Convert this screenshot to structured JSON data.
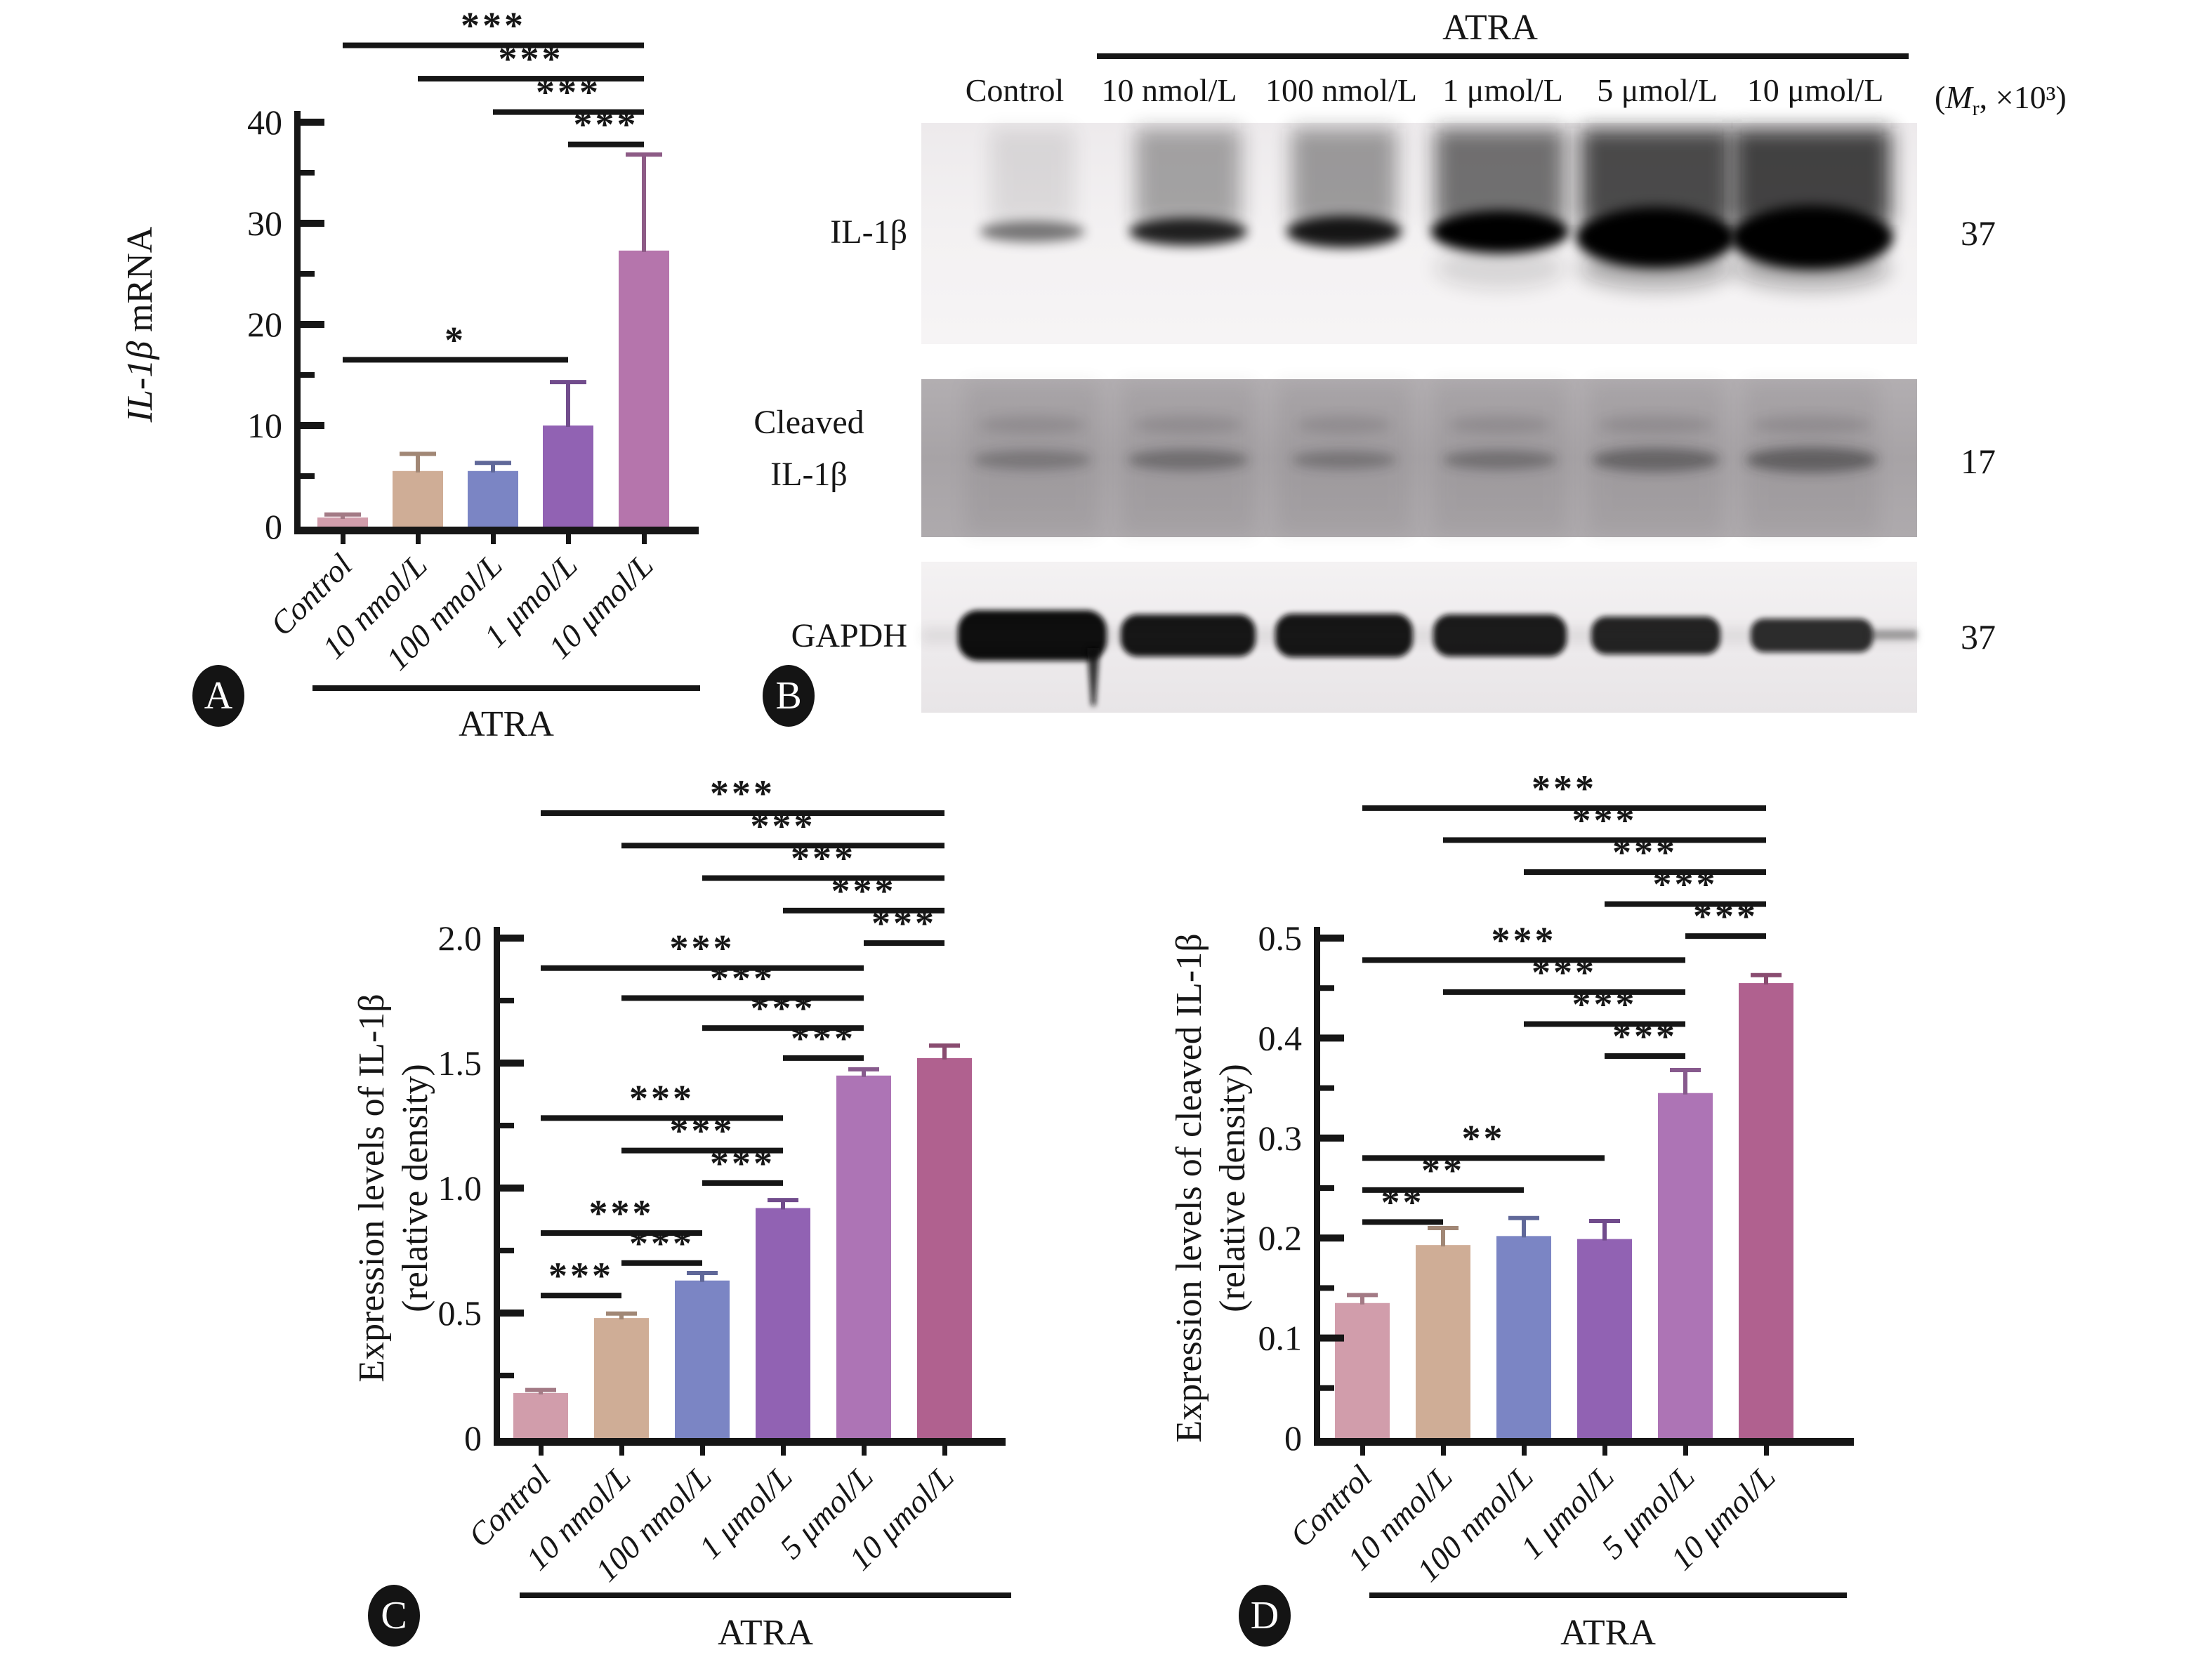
{
  "page": {
    "background": "#ffffff"
  },
  "chart_data": [
    {
      "id": "A",
      "type": "bar",
      "panel_label": "A",
      "ylabel_italic": "IL-1β",
      "ylabel_rest": " mRNA",
      "group_label": "ATRA",
      "categories": [
        "Control",
        "10 nmol/L",
        "100 nmol/L",
        "1 μmol/L",
        "10 μmol/L"
      ],
      "values": [
        0.9,
        5.5,
        5.5,
        10.0,
        27.3
      ],
      "errors": [
        0.3,
        1.7,
        0.8,
        4.3,
        9.5
      ],
      "colors": [
        "#d19dab",
        "#cfad96",
        "#7b85c4",
        "#9162b3",
        "#b575ac"
      ],
      "ylim": [
        0,
        40
      ],
      "yticks": [
        0,
        10,
        20,
        30,
        40
      ],
      "ytick_labels": [
        "0",
        "10",
        "20",
        "30",
        "40"
      ],
      "minor_tick_step": 5,
      "grid": false,
      "significance": [
        {
          "from": 0,
          "to": 4,
          "label": "***",
          "y": 47.6
        },
        {
          "from": 1,
          "to": 4,
          "label": "***",
          "y": 44.3
        },
        {
          "from": 2,
          "to": 4,
          "label": "***",
          "y": 41.0
        },
        {
          "from": 3,
          "to": 4,
          "label": "***",
          "y": 37.8
        },
        {
          "from": 0,
          "to": 3,
          "label": "*",
          "y": 16.5
        }
      ]
    },
    {
      "id": "C",
      "type": "bar",
      "panel_label": "C",
      "ylabel_line1": "Expression levels of IL-1β",
      "ylabel_line2": "(relative density)",
      "group_label": "ATRA",
      "categories": [
        "Control",
        "10 nmol/L",
        "100 nmol/L",
        "1 μmol/L",
        "5 μmol/L",
        "10 μmol/L"
      ],
      "values": [
        0.18,
        0.48,
        0.63,
        0.92,
        1.45,
        1.52
      ],
      "errors": [
        0.012,
        0.018,
        0.03,
        0.032,
        0.025,
        0.05
      ],
      "colors": [
        "#d19dab",
        "#cfad96",
        "#7b85c4",
        "#9162b3",
        "#ad74b5",
        "#b0618f"
      ],
      "ylim": [
        0,
        2.0
      ],
      "yticks": [
        0,
        0.5,
        1.0,
        1.5,
        2.0
      ],
      "ytick_labels": [
        "0",
        "0.5",
        "1.0",
        "1.5",
        "2.0"
      ],
      "minor_tick_step": 0.25,
      "grid": false,
      "significance": [
        {
          "from": 0,
          "to": 5,
          "label": "***",
          "y": 2.5
        },
        {
          "from": 1,
          "to": 5,
          "label": "***",
          "y": 2.37
        },
        {
          "from": 2,
          "to": 5,
          "label": "***",
          "y": 2.24
        },
        {
          "from": 3,
          "to": 5,
          "label": "***",
          "y": 2.11
        },
        {
          "from": 4,
          "to": 5,
          "label": "***",
          "y": 1.98
        },
        {
          "from": 0,
          "to": 4,
          "label": "***",
          "y": 1.88
        },
        {
          "from": 1,
          "to": 4,
          "label": "***",
          "y": 1.76
        },
        {
          "from": 2,
          "to": 4,
          "label": "***",
          "y": 1.64
        },
        {
          "from": 3,
          "to": 4,
          "label": "***",
          "y": 1.52
        },
        {
          "from": 0,
          "to": 3,
          "label": "***",
          "y": 1.28
        },
        {
          "from": 1,
          "to": 3,
          "label": "***",
          "y": 1.15
        },
        {
          "from": 2,
          "to": 3,
          "label": "***",
          "y": 1.02
        },
        {
          "from": 0,
          "to": 2,
          "label": "***",
          "y": 0.82
        },
        {
          "from": 1,
          "to": 2,
          "label": "***",
          "y": 0.7
        },
        {
          "from": 0,
          "to": 1,
          "label": "***",
          "y": 0.57
        }
      ]
    },
    {
      "id": "D",
      "type": "bar",
      "panel_label": "D",
      "ylabel_line1": "Expression levels of cleaved IL-1β",
      "ylabel_line2": "(relative density)",
      "group_label": "ATRA",
      "categories": [
        "Control",
        "10 nmol/L",
        "100 nmol/L",
        "1 μmol/L",
        "5 μmol/L",
        "10 μmol/L"
      ],
      "values": [
        0.135,
        0.193,
        0.202,
        0.199,
        0.345,
        0.455
      ],
      "errors": [
        0.008,
        0.017,
        0.018,
        0.018,
        0.023,
        0.008
      ],
      "colors": [
        "#d19dab",
        "#cfad96",
        "#7b85c4",
        "#9162b3",
        "#ad74b5",
        "#b0618f"
      ],
      "ylim": [
        0,
        0.5
      ],
      "yticks": [
        0,
        0.1,
        0.2,
        0.3,
        0.4,
        0.5
      ],
      "ytick_labels": [
        "0",
        "0.1",
        "0.2",
        "0.3",
        "0.4",
        "0.5"
      ],
      "minor_tick_step": 0.05,
      "grid": false,
      "significance": [
        {
          "from": 0,
          "to": 5,
          "label": "***",
          "y": 0.63
        },
        {
          "from": 1,
          "to": 5,
          "label": "***",
          "y": 0.598
        },
        {
          "from": 2,
          "to": 5,
          "label": "***",
          "y": 0.566
        },
        {
          "from": 3,
          "to": 5,
          "label": "***",
          "y": 0.534
        },
        {
          "from": 4,
          "to": 5,
          "label": "***",
          "y": 0.502
        },
        {
          "from": 0,
          "to": 4,
          "label": "***",
          "y": 0.478
        },
        {
          "from": 1,
          "to": 4,
          "label": "***",
          "y": 0.446
        },
        {
          "from": 2,
          "to": 4,
          "label": "***",
          "y": 0.414
        },
        {
          "from": 3,
          "to": 4,
          "label": "***",
          "y": 0.382
        },
        {
          "from": 0,
          "to": 3,
          "label": "**",
          "y": 0.28
        },
        {
          "from": 0,
          "to": 2,
          "label": "**",
          "y": 0.248
        },
        {
          "from": 0,
          "to": 1,
          "label": "**",
          "y": 0.216
        }
      ]
    }
  ],
  "blot": {
    "panel_label": "B",
    "group_label": "ATRA",
    "lanes": [
      "Control",
      "10 nmol/L",
      "100 nmol/L",
      "1 μmol/L",
      "5 μmol/L",
      "10 μmol/L"
    ],
    "mw_note": {
      "open": "(",
      "symbol": "M",
      "sub": "r",
      "rest": ", ×10³)"
    },
    "rows": [
      {
        "target": "IL-1β",
        "label_lines": [
          "IL-1β"
        ],
        "mw": "37",
        "band_opacity": [
          0.5,
          0.86,
          0.9,
          1,
          1,
          1
        ],
        "band_width": [
          150,
          168,
          164,
          196,
          228,
          232
        ],
        "band_height": [
          30,
          40,
          46,
          62,
          88,
          92
        ],
        "smear_opacity": [
          0.1,
          0.36,
          0.4,
          0.6,
          0.78,
          0.82
        ],
        "smear_width": [
          120,
          150,
          150,
          185,
          215,
          225
        ],
        "bleed_opacity": [
          0,
          0,
          0,
          0.12,
          0.3,
          0.3
        ]
      },
      {
        "target": "Cleaved IL-1β",
        "label_lines": [
          "Cleaved",
          "IL-1β"
        ],
        "mw": "17",
        "band_opacity": [
          0.3,
          0.38,
          0.32,
          0.36,
          0.46,
          0.5
        ],
        "band_width": [
          168,
          172,
          148,
          162,
          182,
          188
        ],
        "band_height": [
          28,
          30,
          26,
          28,
          34,
          36
        ]
      },
      {
        "target": "GAPDH",
        "label_lines": [
          "GAPDH"
        ],
        "mw": "37",
        "band_opacity": [
          1,
          0.96,
          0.96,
          0.94,
          0.9,
          0.86
        ],
        "band_width": [
          212,
          192,
          196,
          190,
          184,
          174
        ],
        "band_height": [
          72,
          60,
          62,
          60,
          54,
          48
        ],
        "artifact_lane": 0
      }
    ]
  }
}
